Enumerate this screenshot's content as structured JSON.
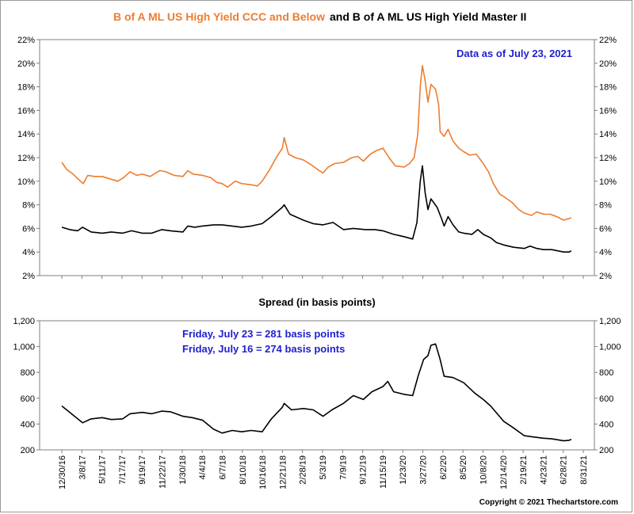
{
  "header": {
    "title_part1": "B of A ML US High Yield CCC and Below",
    "title_part2": "and B of A ML US High Yield Master II"
  },
  "colors": {
    "ccc_series": "#ed7d31",
    "master_series": "#000000",
    "annotation": "#1f1fd0",
    "plot_border": "#7f7f7f"
  },
  "footer": {
    "copyright": "Copyright © 2021 Thechartstore.com"
  },
  "chart_data": [
    {
      "type": "line",
      "title": "B of A ML US High Yield CCC and Below  and B of A ML US High Yield Master II",
      "annotation": "Data as of July 23, 2021",
      "x_start": "2016-12-30",
      "x_end": "2021-08-31",
      "yticks_left": [
        "22%",
        "20%",
        "18%",
        "16%",
        "14%",
        "12%",
        "10%",
        "8%",
        "6%",
        "4%",
        "2%"
      ],
      "yticks_right": [
        "22%",
        "20%",
        "18%",
        "16%",
        "14%",
        "12%",
        "10%",
        "8%",
        "6%",
        "4%",
        "2%"
      ],
      "ylim": [
        2,
        22
      ],
      "grid": false,
      "series": [
        {
          "color": "#ed7d31",
          "points": [
            [
              "2016-12-30",
              11.6
            ],
            [
              "2017-01-15",
              11.0
            ],
            [
              "2017-02-05",
              10.6
            ],
            [
              "2017-02-25",
              10.1
            ],
            [
              "2017-03-10",
              9.8
            ],
            [
              "2017-03-25",
              10.5
            ],
            [
              "2017-04-15",
              10.4
            ],
            [
              "2017-05-11",
              10.4
            ],
            [
              "2017-06-05",
              10.2
            ],
            [
              "2017-07-01",
              10.0
            ],
            [
              "2017-07-20",
              10.3
            ],
            [
              "2017-08-10",
              10.8
            ],
            [
              "2017-09-01",
              10.5
            ],
            [
              "2017-09-19",
              10.6
            ],
            [
              "2017-10-15",
              10.4
            ],
            [
              "2017-11-15",
              10.9
            ],
            [
              "2017-12-05",
              10.8
            ],
            [
              "2018-01-01",
              10.5
            ],
            [
              "2018-01-30",
              10.4
            ],
            [
              "2018-02-15",
              10.9
            ],
            [
              "2018-03-05",
              10.6
            ],
            [
              "2018-04-04",
              10.5
            ],
            [
              "2018-05-01",
              10.3
            ],
            [
              "2018-05-20",
              9.9
            ],
            [
              "2018-06-07",
              9.8
            ],
            [
              "2018-06-25",
              9.5
            ],
            [
              "2018-07-20",
              10.0
            ],
            [
              "2018-08-10",
              9.8
            ],
            [
              "2018-09-10",
              9.7
            ],
            [
              "2018-10-01",
              9.6
            ],
            [
              "2018-10-16",
              10.0
            ],
            [
              "2018-11-10",
              11.0
            ],
            [
              "2018-12-01",
              12.0
            ],
            [
              "2018-12-21",
              12.8
            ],
            [
              "2018-12-27",
              13.7
            ],
            [
              "2019-01-10",
              12.3
            ],
            [
              "2019-02-01",
              12.0
            ],
            [
              "2019-02-28",
              11.8
            ],
            [
              "2019-03-25",
              11.4
            ],
            [
              "2019-04-15",
              11.0
            ],
            [
              "2019-05-03",
              10.7
            ],
            [
              "2019-05-20",
              11.2
            ],
            [
              "2019-06-10",
              11.5
            ],
            [
              "2019-07-09",
              11.6
            ],
            [
              "2019-08-05",
              12.0
            ],
            [
              "2019-08-25",
              12.1
            ],
            [
              "2019-09-12",
              11.7
            ],
            [
              "2019-10-05",
              12.3
            ],
            [
              "2019-10-25",
              12.6
            ],
            [
              "2019-11-15",
              12.8
            ],
            [
              "2019-12-05",
              12.0
            ],
            [
              "2019-12-25",
              11.3
            ],
            [
              "2020-01-23",
              11.2
            ],
            [
              "2020-02-10",
              11.5
            ],
            [
              "2020-02-25",
              12.0
            ],
            [
              "2020-03-08",
              14.0
            ],
            [
              "2020-03-16",
              18.0
            ],
            [
              "2020-03-23",
              19.8
            ],
            [
              "2020-04-01",
              18.5
            ],
            [
              "2020-04-10",
              16.7
            ],
            [
              "2020-04-20",
              18.2
            ],
            [
              "2020-05-05",
              17.8
            ],
            [
              "2020-05-15",
              16.5
            ],
            [
              "2020-05-20",
              14.2
            ],
            [
              "2020-06-02",
              13.8
            ],
            [
              "2020-06-15",
              14.4
            ],
            [
              "2020-07-01",
              13.4
            ],
            [
              "2020-07-20",
              12.8
            ],
            [
              "2020-08-05",
              12.5
            ],
            [
              "2020-08-25",
              12.2
            ],
            [
              "2020-09-15",
              12.3
            ],
            [
              "2020-10-08",
              11.5
            ],
            [
              "2020-10-25",
              10.8
            ],
            [
              "2020-11-10",
              9.8
            ],
            [
              "2020-12-01",
              8.9
            ],
            [
              "2020-12-14",
              8.7
            ],
            [
              "2021-01-10",
              8.2
            ],
            [
              "2021-02-01",
              7.6
            ],
            [
              "2021-02-19",
              7.3
            ],
            [
              "2021-03-15",
              7.1
            ],
            [
              "2021-04-01",
              7.4
            ],
            [
              "2021-04-23",
              7.2
            ],
            [
              "2021-05-15",
              7.2
            ],
            [
              "2021-06-05",
              7.0
            ],
            [
              "2021-06-28",
              6.7
            ],
            [
              "2021-07-10",
              6.8
            ],
            [
              "2021-07-23",
              6.9
            ]
          ]
        },
        {
          "color": "#000000",
          "points": [
            [
              "2016-12-30",
              6.1
            ],
            [
              "2017-01-25",
              5.9
            ],
            [
              "2017-02-20",
              5.8
            ],
            [
              "2017-03-08",
              6.1
            ],
            [
              "2017-04-05",
              5.7
            ],
            [
              "2017-05-11",
              5.6
            ],
            [
              "2017-06-10",
              5.7
            ],
            [
              "2017-07-17",
              5.6
            ],
            [
              "2017-08-15",
              5.8
            ],
            [
              "2017-09-19",
              5.6
            ],
            [
              "2017-10-20",
              5.6
            ],
            [
              "2017-11-22",
              5.9
            ],
            [
              "2017-12-20",
              5.8
            ],
            [
              "2018-01-30",
              5.7
            ],
            [
              "2018-02-15",
              6.2
            ],
            [
              "2018-03-10",
              6.1
            ],
            [
              "2018-04-04",
              6.2
            ],
            [
              "2018-05-10",
              6.3
            ],
            [
              "2018-06-07",
              6.3
            ],
            [
              "2018-07-10",
              6.2
            ],
            [
              "2018-08-10",
              6.1
            ],
            [
              "2018-09-10",
              6.2
            ],
            [
              "2018-10-16",
              6.4
            ],
            [
              "2018-11-15",
              7.0
            ],
            [
              "2018-12-21",
              7.8
            ],
            [
              "2018-12-27",
              8.0
            ],
            [
              "2019-01-15",
              7.2
            ],
            [
              "2019-02-28",
              6.7
            ],
            [
              "2019-04-01",
              6.4
            ],
            [
              "2019-05-03",
              6.3
            ],
            [
              "2019-06-05",
              6.5
            ],
            [
              "2019-07-09",
              5.9
            ],
            [
              "2019-08-10",
              6.0
            ],
            [
              "2019-09-19",
              5.9
            ],
            [
              "2019-10-20",
              5.9
            ],
            [
              "2019-11-15",
              5.8
            ],
            [
              "2019-12-20",
              5.5
            ],
            [
              "2020-01-23",
              5.3
            ],
            [
              "2020-02-20",
              5.1
            ],
            [
              "2020-03-05",
              6.5
            ],
            [
              "2020-03-16",
              10.0
            ],
            [
              "2020-03-23",
              11.3
            ],
            [
              "2020-04-01",
              9.0
            ],
            [
              "2020-04-10",
              7.6
            ],
            [
              "2020-04-20",
              8.5
            ],
            [
              "2020-05-10",
              7.8
            ],
            [
              "2020-05-25",
              6.8
            ],
            [
              "2020-06-02",
              6.2
            ],
            [
              "2020-06-15",
              7.0
            ],
            [
              "2020-07-01",
              6.3
            ],
            [
              "2020-07-20",
              5.7
            ],
            [
              "2020-08-05",
              5.6
            ],
            [
              "2020-09-01",
              5.5
            ],
            [
              "2020-09-20",
              5.9
            ],
            [
              "2020-10-08",
              5.5
            ],
            [
              "2020-11-01",
              5.2
            ],
            [
              "2020-11-20",
              4.8
            ],
            [
              "2020-12-14",
              4.6
            ],
            [
              "2021-01-15",
              4.4
            ],
            [
              "2021-02-19",
              4.3
            ],
            [
              "2021-03-10",
              4.5
            ],
            [
              "2021-04-01",
              4.3
            ],
            [
              "2021-04-23",
              4.2
            ],
            [
              "2021-05-20",
              4.2
            ],
            [
              "2021-06-28",
              4.0
            ],
            [
              "2021-07-16",
              4.0
            ],
            [
              "2021-07-23",
              4.1
            ]
          ]
        }
      ]
    },
    {
      "type": "line",
      "title": "Spread (in basis points)",
      "annotations": [
        "Friday, July 23 = 281 basis points",
        "Friday, July 16 = 274 basis points"
      ],
      "x_start": "2016-12-30",
      "x_end": "2021-08-31",
      "yticks_left": [
        "1,200",
        "1,000",
        "800",
        "600",
        "400",
        "200"
      ],
      "yticks_right": [
        "1,200",
        "1,000",
        "800",
        "600",
        "400",
        "200"
      ],
      "ylim": [
        200,
        1200
      ],
      "grid": false,
      "xticks": [
        "12/30/16",
        "3/8/17",
        "5/11/17",
        "7/17/17",
        "9/19/17",
        "11/22/17",
        "1/30/18",
        "4/4/18",
        "6/7/18",
        "8/10/18",
        "10/16/18",
        "12/21/18",
        "2/28/19",
        "5/3/19",
        "7/9/19",
        "9/12/19",
        "11/15/19",
        "1/23/20",
        "3/27/20",
        "6/2/20",
        "8/5/20",
        "10/8/20",
        "12/14/20",
        "2/19/21",
        "4/23/21",
        "6/28/21",
        "8/31/21"
      ],
      "series": [
        {
          "color": "#000000",
          "points": [
            [
              "2016-12-30",
              540
            ],
            [
              "2017-01-20",
              500
            ],
            [
              "2017-02-15",
              450
            ],
            [
              "2017-03-08",
              410
            ],
            [
              "2017-04-05",
              440
            ],
            [
              "2017-05-11",
              450
            ],
            [
              "2017-06-10",
              435
            ],
            [
              "2017-07-17",
              440
            ],
            [
              "2017-08-10",
              480
            ],
            [
              "2017-09-19",
              490
            ],
            [
              "2017-10-20",
              480
            ],
            [
              "2017-11-22",
              500
            ],
            [
              "2017-12-20",
              495
            ],
            [
              "2018-01-30",
              460
            ],
            [
              "2018-03-01",
              450
            ],
            [
              "2018-04-04",
              430
            ],
            [
              "2018-05-10",
              360
            ],
            [
              "2018-06-07",
              330
            ],
            [
              "2018-07-10",
              350
            ],
            [
              "2018-08-10",
              340
            ],
            [
              "2018-09-10",
              350
            ],
            [
              "2018-10-16",
              340
            ],
            [
              "2018-11-15",
              440
            ],
            [
              "2018-12-21",
              530
            ],
            [
              "2018-12-27",
              560
            ],
            [
              "2019-01-20",
              510
            ],
            [
              "2019-02-28",
              520
            ],
            [
              "2019-04-01",
              510
            ],
            [
              "2019-05-03",
              460
            ],
            [
              "2019-06-01",
              510
            ],
            [
              "2019-07-09",
              560
            ],
            [
              "2019-08-10",
              620
            ],
            [
              "2019-09-12",
              590
            ],
            [
              "2019-10-10",
              650
            ],
            [
              "2019-11-15",
              690
            ],
            [
              "2019-12-01",
              730
            ],
            [
              "2019-12-20",
              650
            ],
            [
              "2020-01-23",
              630
            ],
            [
              "2020-02-20",
              620
            ],
            [
              "2020-03-10",
              780
            ],
            [
              "2020-03-27",
              900
            ],
            [
              "2020-04-10",
              930
            ],
            [
              "2020-04-20",
              1010
            ],
            [
              "2020-05-05",
              1020
            ],
            [
              "2020-05-20",
              900
            ],
            [
              "2020-06-02",
              770
            ],
            [
              "2020-07-01",
              760
            ],
            [
              "2020-08-05",
              720
            ],
            [
              "2020-09-10",
              640
            ],
            [
              "2020-10-08",
              590
            ],
            [
              "2020-11-01",
              540
            ],
            [
              "2020-12-14",
              420
            ],
            [
              "2021-01-15",
              370
            ],
            [
              "2021-02-19",
              310
            ],
            [
              "2021-03-20",
              300
            ],
            [
              "2021-04-23",
              290
            ],
            [
              "2021-05-20",
              285
            ],
            [
              "2021-06-28",
              270
            ],
            [
              "2021-07-16",
              274
            ],
            [
              "2021-07-23",
              281
            ]
          ]
        }
      ]
    }
  ]
}
